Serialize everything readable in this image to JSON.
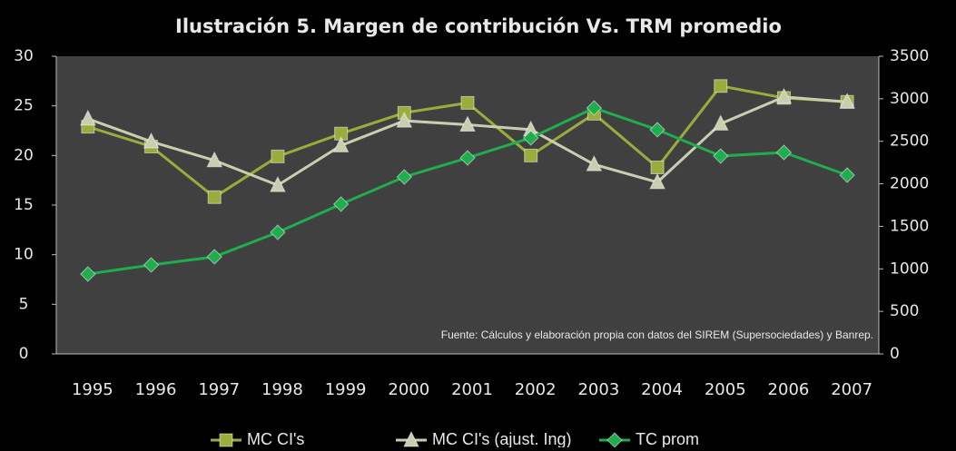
{
  "chart_data": {
    "type": "line",
    "title": "Ilustración 5. Margen de contribución Vs. TRM promedio",
    "annotation": "Fuente:   Cálculos  y elaboración propia con datos del SIREM (Supersociedades) y Banrep.",
    "categories": [
      "1995",
      "1996",
      "1997",
      "1998",
      "1999",
      "2000",
      "2001",
      "2002",
      "2003",
      "2004",
      "2005",
      "2006",
      "2007"
    ],
    "series": [
      {
        "name": "MC CI's",
        "color": "#9aac3c",
        "marker": "square",
        "axis": "y",
        "values": [
          22.9,
          20.9,
          15.8,
          19.9,
          22.2,
          24.3,
          25.3,
          20.0,
          24.2,
          18.8,
          27.0,
          25.8,
          25.4
        ]
      },
      {
        "name": "MC CI's (ajust. Ing)",
        "color": "#c8cfb0",
        "marker": "triangle",
        "axis": "y",
        "values": [
          23.7,
          21.4,
          19.5,
          17.0,
          21.0,
          23.5,
          23.1,
          22.6,
          19.1,
          17.3,
          23.2,
          25.9,
          25.4
        ]
      },
      {
        "name": "TC prom",
        "color": "#1fad4e",
        "marker": "diamond",
        "axis": "y2",
        "values": [
          939,
          1046,
          1142,
          1430,
          1761,
          2081,
          2305,
          2540,
          2892,
          2636,
          2327,
          2369,
          2102
        ]
      }
    ],
    "ylim": [
      0,
      30
    ],
    "yticks": [
      0,
      5,
      10,
      15,
      20,
      25,
      30
    ],
    "y2lim": [
      0,
      3500
    ],
    "y2ticks": [
      0,
      500,
      1000,
      1500,
      2000,
      2500,
      3000,
      3500
    ],
    "legend": "bottom"
  }
}
